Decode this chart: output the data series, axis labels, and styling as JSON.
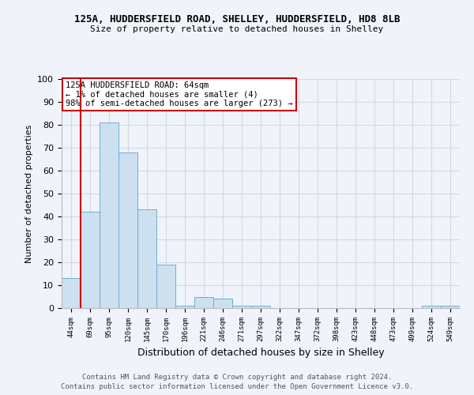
{
  "title_line1": "125A, HUDDERSFIELD ROAD, SHELLEY, HUDDERSFIELD, HD8 8LB",
  "title_line2": "Size of property relative to detached houses in Shelley",
  "xlabel": "Distribution of detached houses by size in Shelley",
  "ylabel": "Number of detached properties",
  "bin_labels": [
    "44sqm",
    "69sqm",
    "95sqm",
    "120sqm",
    "145sqm",
    "170sqm",
    "196sqm",
    "221sqm",
    "246sqm",
    "271sqm",
    "297sqm",
    "322sqm",
    "347sqm",
    "372sqm",
    "398sqm",
    "423sqm",
    "448sqm",
    "473sqm",
    "499sqm",
    "524sqm",
    "549sqm"
  ],
  "bar_heights": [
    13,
    42,
    81,
    68,
    43,
    19,
    1,
    5,
    4,
    1,
    1,
    0,
    0,
    0,
    0,
    0,
    0,
    0,
    0,
    1,
    1
  ],
  "bar_color": "#cce0f0",
  "bar_edge_color": "#6baed6",
  "vline_color": "#cc0000",
  "annotation_text": "125A HUDDERSFIELD ROAD: 64sqm\n← 1% of detached houses are smaller (4)\n98% of semi-detached houses are larger (273) →",
  "annotation_box_color": "#ffffff",
  "annotation_box_edge": "#cc0000",
  "ylim": [
    0,
    100
  ],
  "yticks": [
    0,
    10,
    20,
    30,
    40,
    50,
    60,
    70,
    80,
    90,
    100
  ],
  "grid_color": "#d0d8e8",
  "footer_line1": "Contains HM Land Registry data © Crown copyright and database right 2024.",
  "footer_line2": "Contains public sector information licensed under the Open Government Licence v3.0.",
  "bg_color": "#f0f4fa"
}
